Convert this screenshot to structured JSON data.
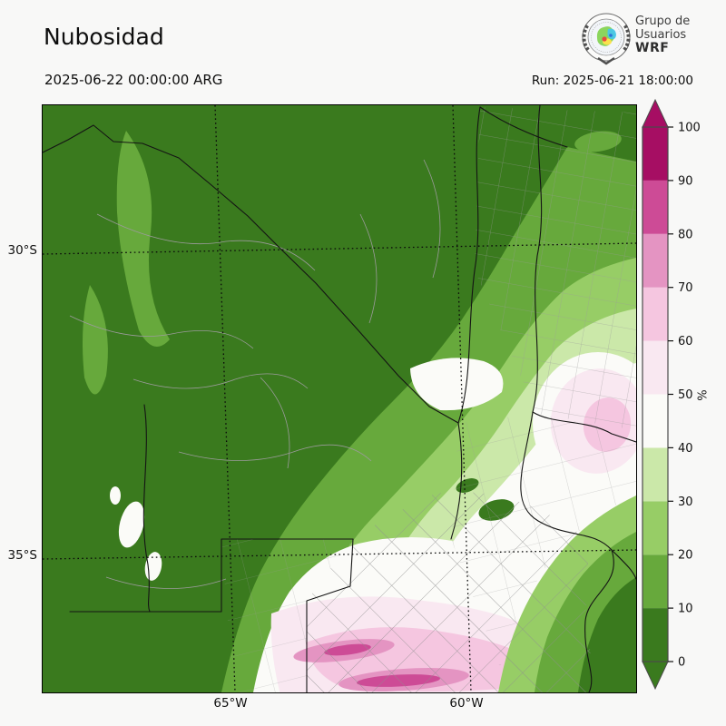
{
  "page": {
    "background": "#f8f8f7"
  },
  "header": {
    "title": "Nubosidad",
    "valid_time": "2025-06-22 00:00:00 ARG",
    "run": "Run: 2025-06-21 18:00:00"
  },
  "logo": {
    "line1": "Grupo de",
    "line2": "Usuarios",
    "line3": "WRF"
  },
  "axes": {
    "lat_labels": [
      "30°S",
      "35°S"
    ],
    "lon_labels": [
      "65°W",
      "60°W"
    ]
  },
  "colorbar": {
    "unit": "%",
    "ticks": [
      0,
      10,
      20,
      30,
      40,
      50,
      60,
      70,
      80,
      90,
      100
    ],
    "levels": [
      {
        "from": 0,
        "to": 10,
        "color": "#3a7a1e"
      },
      {
        "from": 10,
        "to": 20,
        "color": "#67a93c"
      },
      {
        "from": 20,
        "to": 30,
        "color": "#97cd66"
      },
      {
        "from": 30,
        "to": 40,
        "color": "#cbe8a9"
      },
      {
        "from": 40,
        "to": 50,
        "color": "#fbfbf8"
      },
      {
        "from": 50,
        "to": 60,
        "color": "#f9e8f1"
      },
      {
        "from": 60,
        "to": 70,
        "color": "#f5c6e0"
      },
      {
        "from": 70,
        "to": 80,
        "color": "#e494c2"
      },
      {
        "from": 80,
        "to": 90,
        "color": "#cd4b96"
      },
      {
        "from": 90,
        "to": 100,
        "color": "#a60e63"
      }
    ]
  },
  "chart_data": {
    "type": "heatmap",
    "title": "Nubosidad",
    "units": "%",
    "valid_time": "2025-06-22 00:00:00 ARG",
    "model_run": "2025-06-21 18:00:00",
    "x_tick_labels": [
      "65°W",
      "60°W"
    ],
    "y_tick_labels": [
      "30°S",
      "35°S"
    ],
    "colorbar_range": [
      0,
      100
    ],
    "colorbar_ticks": [
      0,
      10,
      20,
      30,
      40,
      50,
      60,
      70,
      80,
      90,
      100
    ],
    "legend_position": "right",
    "levels": [
      {
        "range": [
          0,
          10
        ],
        "color": "#3a7a1e"
      },
      {
        "range": [
          10,
          20
        ],
        "color": "#67a93c"
      },
      {
        "range": [
          20,
          30
        ],
        "color": "#97cd66"
      },
      {
        "range": [
          30,
          40
        ],
        "color": "#cbe8a9"
      },
      {
        "range": [
          40,
          50
        ],
        "color": "#fbfbf8"
      },
      {
        "range": [
          50,
          60
        ],
        "color": "#f9e8f1"
      },
      {
        "range": [
          60,
          70
        ],
        "color": "#f5c6e0"
      },
      {
        "range": [
          70,
          80
        ],
        "color": "#e494c2"
      },
      {
        "range": [
          80,
          90
        ],
        "color": "#cd4b96"
      },
      {
        "range": [
          90,
          100
        ],
        "color": "#a60e63"
      }
    ],
    "regions_estimated": [
      {
        "region": "northwest",
        "cloud_cover_pct": "0-10"
      },
      {
        "region": "north-strip",
        "cloud_cover_pct": "0-20"
      },
      {
        "region": "west-edge",
        "cloud_cover_pct": "0-10"
      },
      {
        "region": "center",
        "cloud_cover_pct": "10-30"
      },
      {
        "region": "center-east",
        "cloud_cover_pct": "30-50"
      },
      {
        "region": "east-edge-central",
        "cloud_cover_pct": "50-70"
      },
      {
        "region": "south-center",
        "cloud_cover_pct": "40-90"
      },
      {
        "region": "south-center-bands",
        "cloud_cover_pct": "80-90"
      },
      {
        "region": "southwest",
        "cloud_cover_pct": "0-30"
      },
      {
        "region": "southeast-corner",
        "cloud_cover_pct": "0-20"
      }
    ]
  }
}
